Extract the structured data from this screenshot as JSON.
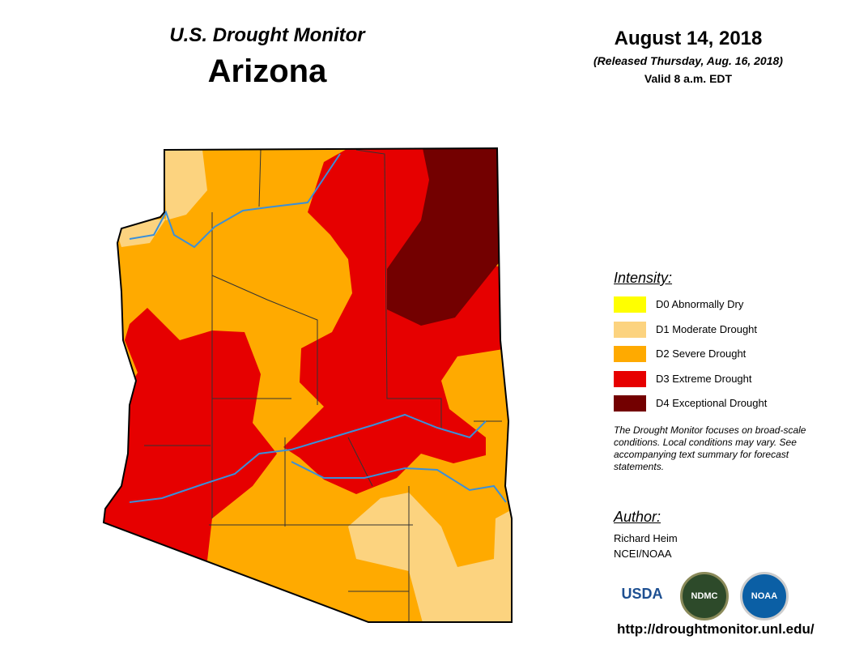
{
  "header": {
    "title": "U.S. Drought Monitor",
    "state": "Arizona",
    "date": "August 14, 2018",
    "released": "(Released Thursday, Aug. 16, 2018)",
    "valid": "Valid 8 a.m. EDT"
  },
  "legend": {
    "title": "Intensity:",
    "items": [
      {
        "label": "D0 Abnormally Dry",
        "color": "#ffff00"
      },
      {
        "label": "D1 Moderate Drought",
        "color": "#fcd37f"
      },
      {
        "label": "D2 Severe Drought",
        "color": "#ffaa00"
      },
      {
        "label": "D3 Extreme Drought",
        "color": "#e60000"
      },
      {
        "label": "D4 Exceptional Drought",
        "color": "#730000"
      }
    ]
  },
  "note": "The Drought Monitor focuses on broad-scale conditions. Local conditions may vary. See accompanying text summary for forecast statements.",
  "author": {
    "title": "Author:",
    "lines": [
      "Richard Heim",
      "NCEI/NOAA"
    ]
  },
  "logos": [
    "USDA",
    "NDMC",
    "NOAA"
  ],
  "url": "http://droughtmonitor.unl.edu/"
}
